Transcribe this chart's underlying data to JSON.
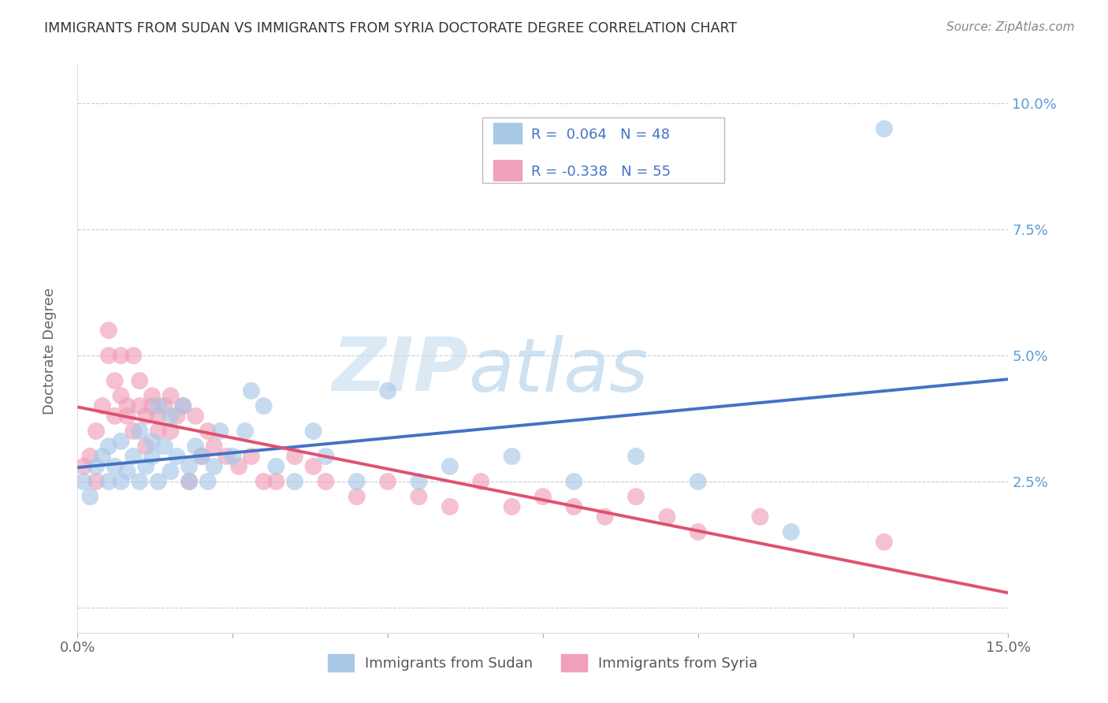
{
  "title": "IMMIGRANTS FROM SUDAN VS IMMIGRANTS FROM SYRIA DOCTORATE DEGREE CORRELATION CHART",
  "source": "Source: ZipAtlas.com",
  "ylabel": "Doctorate Degree",
  "xlim": [
    0.0,
    0.15
  ],
  "ylim": [
    -0.005,
    0.108
  ],
  "sudan_color": "#a8c8e8",
  "syria_color": "#f0a0b8",
  "sudan_line_color": "#4472c4",
  "syria_line_color": "#e05070",
  "sudan_R": 0.064,
  "sudan_N": 48,
  "syria_R": -0.338,
  "syria_N": 55,
  "legend_label_sudan": "Immigrants from Sudan",
  "legend_label_syria": "Immigrants from Syria",
  "watermark_zip": "ZIP",
  "watermark_atlas": "atlas",
  "sudan_x": [
    0.001,
    0.002,
    0.003,
    0.004,
    0.005,
    0.005,
    0.006,
    0.007,
    0.007,
    0.008,
    0.009,
    0.01,
    0.01,
    0.011,
    0.012,
    0.012,
    0.013,
    0.013,
    0.014,
    0.015,
    0.015,
    0.016,
    0.017,
    0.018,
    0.018,
    0.019,
    0.02,
    0.021,
    0.022,
    0.023,
    0.025,
    0.027,
    0.028,
    0.03,
    0.032,
    0.035,
    0.038,
    0.04,
    0.045,
    0.05,
    0.055,
    0.06,
    0.07,
    0.08,
    0.09,
    0.1,
    0.115,
    0.13
  ],
  "sudan_y": [
    0.025,
    0.022,
    0.028,
    0.03,
    0.025,
    0.032,
    0.028,
    0.033,
    0.025,
    0.027,
    0.03,
    0.035,
    0.025,
    0.028,
    0.033,
    0.03,
    0.04,
    0.025,
    0.032,
    0.038,
    0.027,
    0.03,
    0.04,
    0.025,
    0.028,
    0.032,
    0.03,
    0.025,
    0.028,
    0.035,
    0.03,
    0.035,
    0.043,
    0.04,
    0.028,
    0.025,
    0.035,
    0.03,
    0.025,
    0.043,
    0.025,
    0.028,
    0.03,
    0.025,
    0.03,
    0.025,
    0.015,
    0.095
  ],
  "syria_x": [
    0.001,
    0.002,
    0.003,
    0.003,
    0.004,
    0.005,
    0.005,
    0.006,
    0.006,
    0.007,
    0.007,
    0.008,
    0.008,
    0.009,
    0.009,
    0.01,
    0.01,
    0.011,
    0.011,
    0.012,
    0.012,
    0.013,
    0.013,
    0.014,
    0.015,
    0.015,
    0.016,
    0.017,
    0.018,
    0.019,
    0.02,
    0.021,
    0.022,
    0.024,
    0.026,
    0.028,
    0.03,
    0.032,
    0.035,
    0.038,
    0.04,
    0.045,
    0.05,
    0.055,
    0.06,
    0.065,
    0.07,
    0.075,
    0.08,
    0.085,
    0.09,
    0.095,
    0.1,
    0.11,
    0.13
  ],
  "syria_y": [
    0.028,
    0.03,
    0.035,
    0.025,
    0.04,
    0.05,
    0.055,
    0.045,
    0.038,
    0.05,
    0.042,
    0.038,
    0.04,
    0.05,
    0.035,
    0.04,
    0.045,
    0.038,
    0.032,
    0.042,
    0.04,
    0.038,
    0.035,
    0.04,
    0.042,
    0.035,
    0.038,
    0.04,
    0.025,
    0.038,
    0.03,
    0.035,
    0.032,
    0.03,
    0.028,
    0.03,
    0.025,
    0.025,
    0.03,
    0.028,
    0.025,
    0.022,
    0.025,
    0.022,
    0.02,
    0.025,
    0.02,
    0.022,
    0.02,
    0.018,
    0.022,
    0.018,
    0.015,
    0.018,
    0.013
  ]
}
